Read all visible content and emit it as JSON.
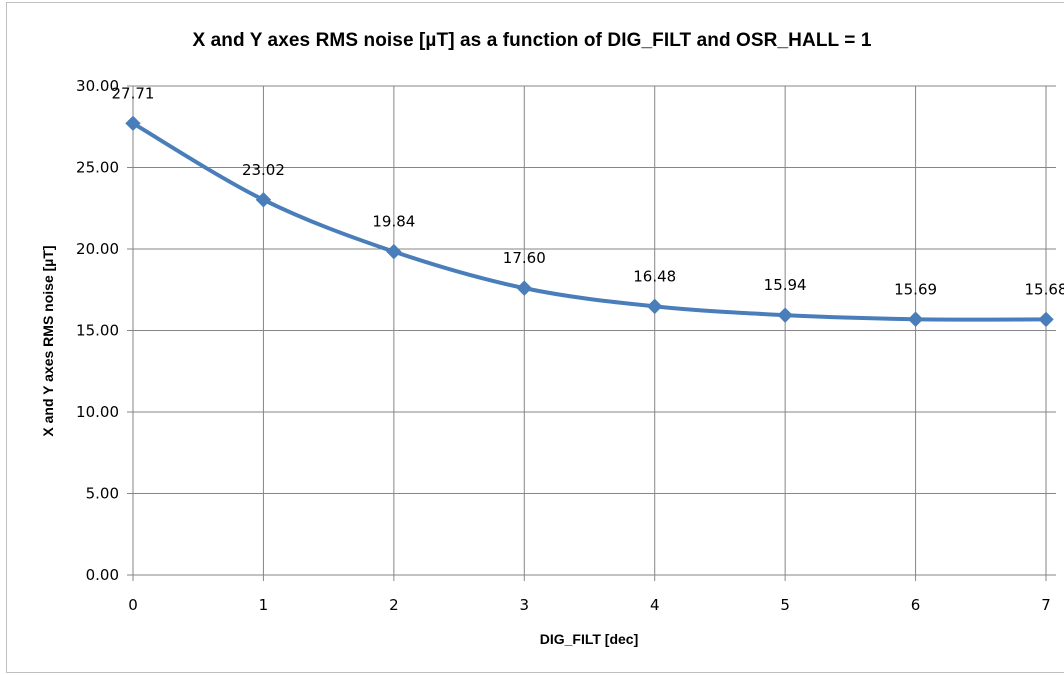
{
  "chart_data": {
    "type": "line",
    "title": "X and Y axes RMS noise [µT] as a function of DIG_FILT and OSR_HALL = 1",
    "xlabel": "DIG_FILT  [dec]",
    "ylabel": "X and  Y axes  RMS  noise  [µT]",
    "x": [
      0,
      1,
      2,
      3,
      4,
      5,
      6,
      7
    ],
    "x_tick_labels": [
      "0",
      "1",
      "2",
      "3",
      "4",
      "5",
      "6",
      "7"
    ],
    "y_tick_labels": [
      "0.00",
      "5.00",
      "10.00",
      "15.00",
      "20.00",
      "25.00",
      "30.00"
    ],
    "ylim": [
      0,
      30
    ],
    "xlim": [
      0,
      7
    ],
    "grid": true,
    "legend": "none",
    "series": [
      {
        "values": [
          27.71,
          23.02,
          19.84,
          17.6,
          16.48,
          15.94,
          15.69,
          15.68
        ],
        "data_labels": [
          "27.71",
          "23.02",
          "19.84",
          "17.60",
          "16.48",
          "15.94",
          "15.69",
          "15.68"
        ],
        "color": "#4a7ebb",
        "marker": "diamond",
        "smooth": true
      }
    ]
  }
}
